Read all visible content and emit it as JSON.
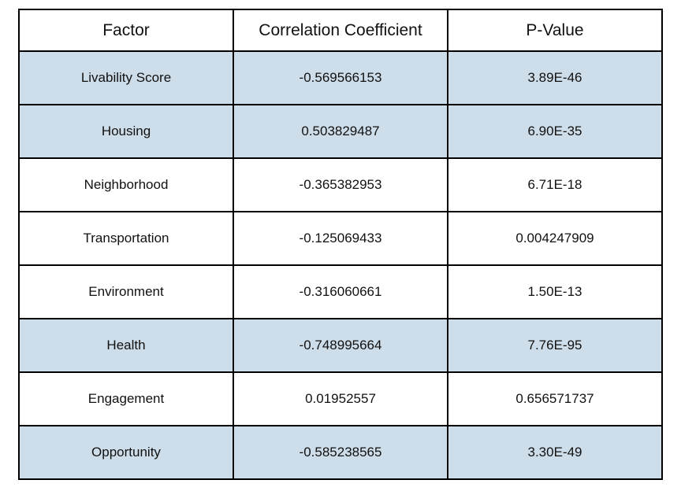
{
  "table": {
    "headers": [
      "Factor",
      "Correlation Coefficient",
      "P-Value"
    ],
    "rows": [
      {
        "factor": "Livability Score",
        "correlation": "-0.569566153",
        "p_value": "3.89E-46",
        "shaded": true
      },
      {
        "factor": "Housing",
        "correlation": "0.503829487",
        "p_value": "6.90E-35",
        "shaded": true
      },
      {
        "factor": "Neighborhood",
        "correlation": "-0.365382953",
        "p_value": "6.71E-18",
        "shaded": false
      },
      {
        "factor": "Transportation",
        "correlation": "-0.125069433",
        "p_value": "0.004247909",
        "shaded": false
      },
      {
        "factor": "Environment",
        "correlation": "-0.316060661",
        "p_value": "1.50E-13",
        "shaded": false
      },
      {
        "factor": "Health",
        "correlation": "-0.748995664",
        "p_value": "7.76E-95",
        "shaded": true
      },
      {
        "factor": "Engagement",
        "correlation": "0.01952557",
        "p_value": "0.656571737",
        "shaded": false
      },
      {
        "factor": "Opportunity",
        "correlation": "-0.585238565",
        "p_value": "3.30E-49",
        "shaded": true
      }
    ]
  },
  "colors": {
    "shaded_row": "#cddde9",
    "plain_row": "#ffffff",
    "border": "#000000"
  }
}
